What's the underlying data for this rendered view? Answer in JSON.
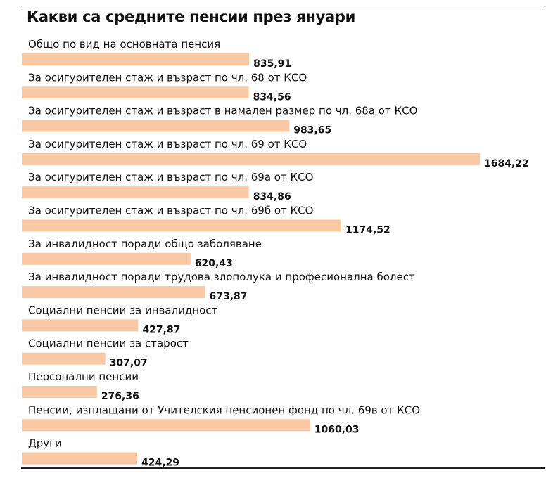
{
  "chart_data": {
    "type": "bar",
    "orientation": "horizontal",
    "title": "Какви са средните пенсии през януари",
    "categories": [
      "Общо по вид на основната пенсия",
      "За осигурителен стаж и възраст по чл. 68 от КСО",
      "За осигурителен стаж и възраст в намален размер по чл. 68а от КСО",
      "За осигурителен стаж и възраст по чл. 69 от КСО",
      "За осигурителен стаж и възраст по чл. 69а от КСО",
      "За осигурителен стаж и възраст по чл. 69б от КСО",
      "За инвалидност поради общо заболяване",
      "За инвалидност поради трудова злополука и професионална болест",
      "Социални пенсии за инвалидност",
      "Социални пенсии за старост",
      "Персонални пенсии",
      "Пенсии, изплащани от Учителския пенсионен фонд по чл. 69в от КСО",
      "Други"
    ],
    "values": [
      835.91,
      834.56,
      983.65,
      1684.22,
      834.86,
      1174.52,
      620.43,
      673.87,
      427.87,
      307.07,
      276.36,
      1060.03,
      424.29
    ],
    "value_labels": [
      "835,91",
      "834,56",
      "983,65",
      "1684,22",
      "834,86",
      "1174,52",
      "620,43",
      "673,87",
      "427,87",
      "307,07",
      "276,36",
      "1060,03",
      "424,29"
    ],
    "xlim": [
      0,
      1684.22
    ],
    "bar_color": "#f8c9a4",
    "grid": false,
    "legend": "none"
  }
}
